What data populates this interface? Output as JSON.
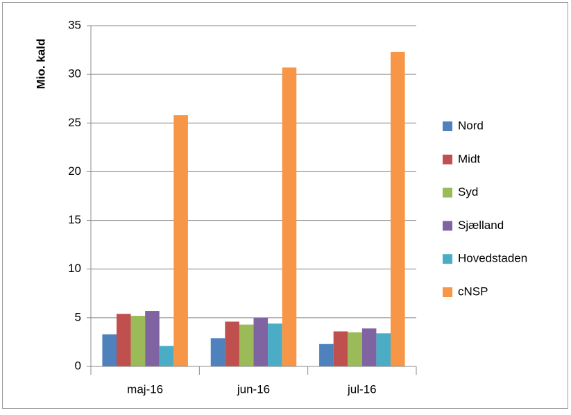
{
  "chart_data": {
    "type": "bar",
    "y_label": "Mio. kald",
    "categories": [
      "maj-16",
      "jun-16",
      "jul-16"
    ],
    "series": [
      {
        "name": "Nord",
        "color": "#4F81BD",
        "values": [
          3.3,
          2.9,
          2.3
        ]
      },
      {
        "name": "Midt",
        "color": "#C0504D",
        "values": [
          5.4,
          4.6,
          3.6
        ]
      },
      {
        "name": "Syd",
        "color": "#9BBB59",
        "values": [
          5.2,
          4.3,
          3.5
        ]
      },
      {
        "name": "Sjælland",
        "color": "#8064A2",
        "values": [
          5.7,
          5.0,
          3.9
        ]
      },
      {
        "name": "Hovedstaden",
        "color": "#4BACC6",
        "values": [
          2.1,
          4.4,
          3.4
        ]
      },
      {
        "name": "cNSP",
        "color": "#F79646",
        "values": [
          25.8,
          30.7,
          32.3
        ]
      }
    ],
    "ylim": [
      0,
      35
    ],
    "yticks": [
      0,
      5,
      10,
      15,
      20,
      25,
      30,
      35
    ],
    "grid": true,
    "legend": "right"
  }
}
